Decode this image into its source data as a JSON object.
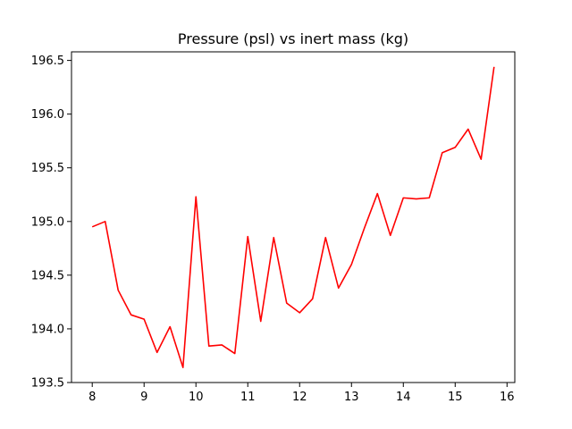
{
  "chart_data": {
    "type": "line",
    "title": "Pressure  (psl) vs inert mass (kg)",
    "xlabel": "",
    "ylabel": "",
    "xlim": [
      7.6,
      16.15
    ],
    "ylim": [
      193.5,
      196.58
    ],
    "xticks": [
      8,
      9,
      10,
      11,
      12,
      13,
      14,
      15,
      16
    ],
    "yticks": [
      193.5,
      194.0,
      194.5,
      195.0,
      195.5,
      196.0,
      196.5
    ],
    "ytick_labels": [
      "193.5",
      "194.0",
      "194.5",
      "195.0",
      "195.5",
      "196.0",
      "196.5"
    ],
    "grid": false,
    "series": [
      {
        "color": "#ff0000",
        "x": [
          8.0,
          8.25,
          8.5,
          8.75,
          9.0,
          9.25,
          9.5,
          9.75,
          10.0,
          10.25,
          10.5,
          10.75,
          11.0,
          11.25,
          11.5,
          11.75,
          12.0,
          12.25,
          12.5,
          12.75,
          13.0,
          13.25,
          13.5,
          13.75,
          14.0,
          14.25,
          14.5,
          14.75,
          15.0,
          15.25,
          15.5,
          15.75
        ],
        "y": [
          194.95,
          195.0,
          194.36,
          194.13,
          194.09,
          193.78,
          194.02,
          193.64,
          195.23,
          193.84,
          193.85,
          193.77,
          194.86,
          194.07,
          194.85,
          194.24,
          194.15,
          194.28,
          194.85,
          194.38,
          194.6,
          194.94,
          195.26,
          194.87,
          195.22,
          195.21,
          195.22,
          195.64,
          195.69,
          195.86,
          195.58,
          196.44
        ]
      }
    ]
  }
}
